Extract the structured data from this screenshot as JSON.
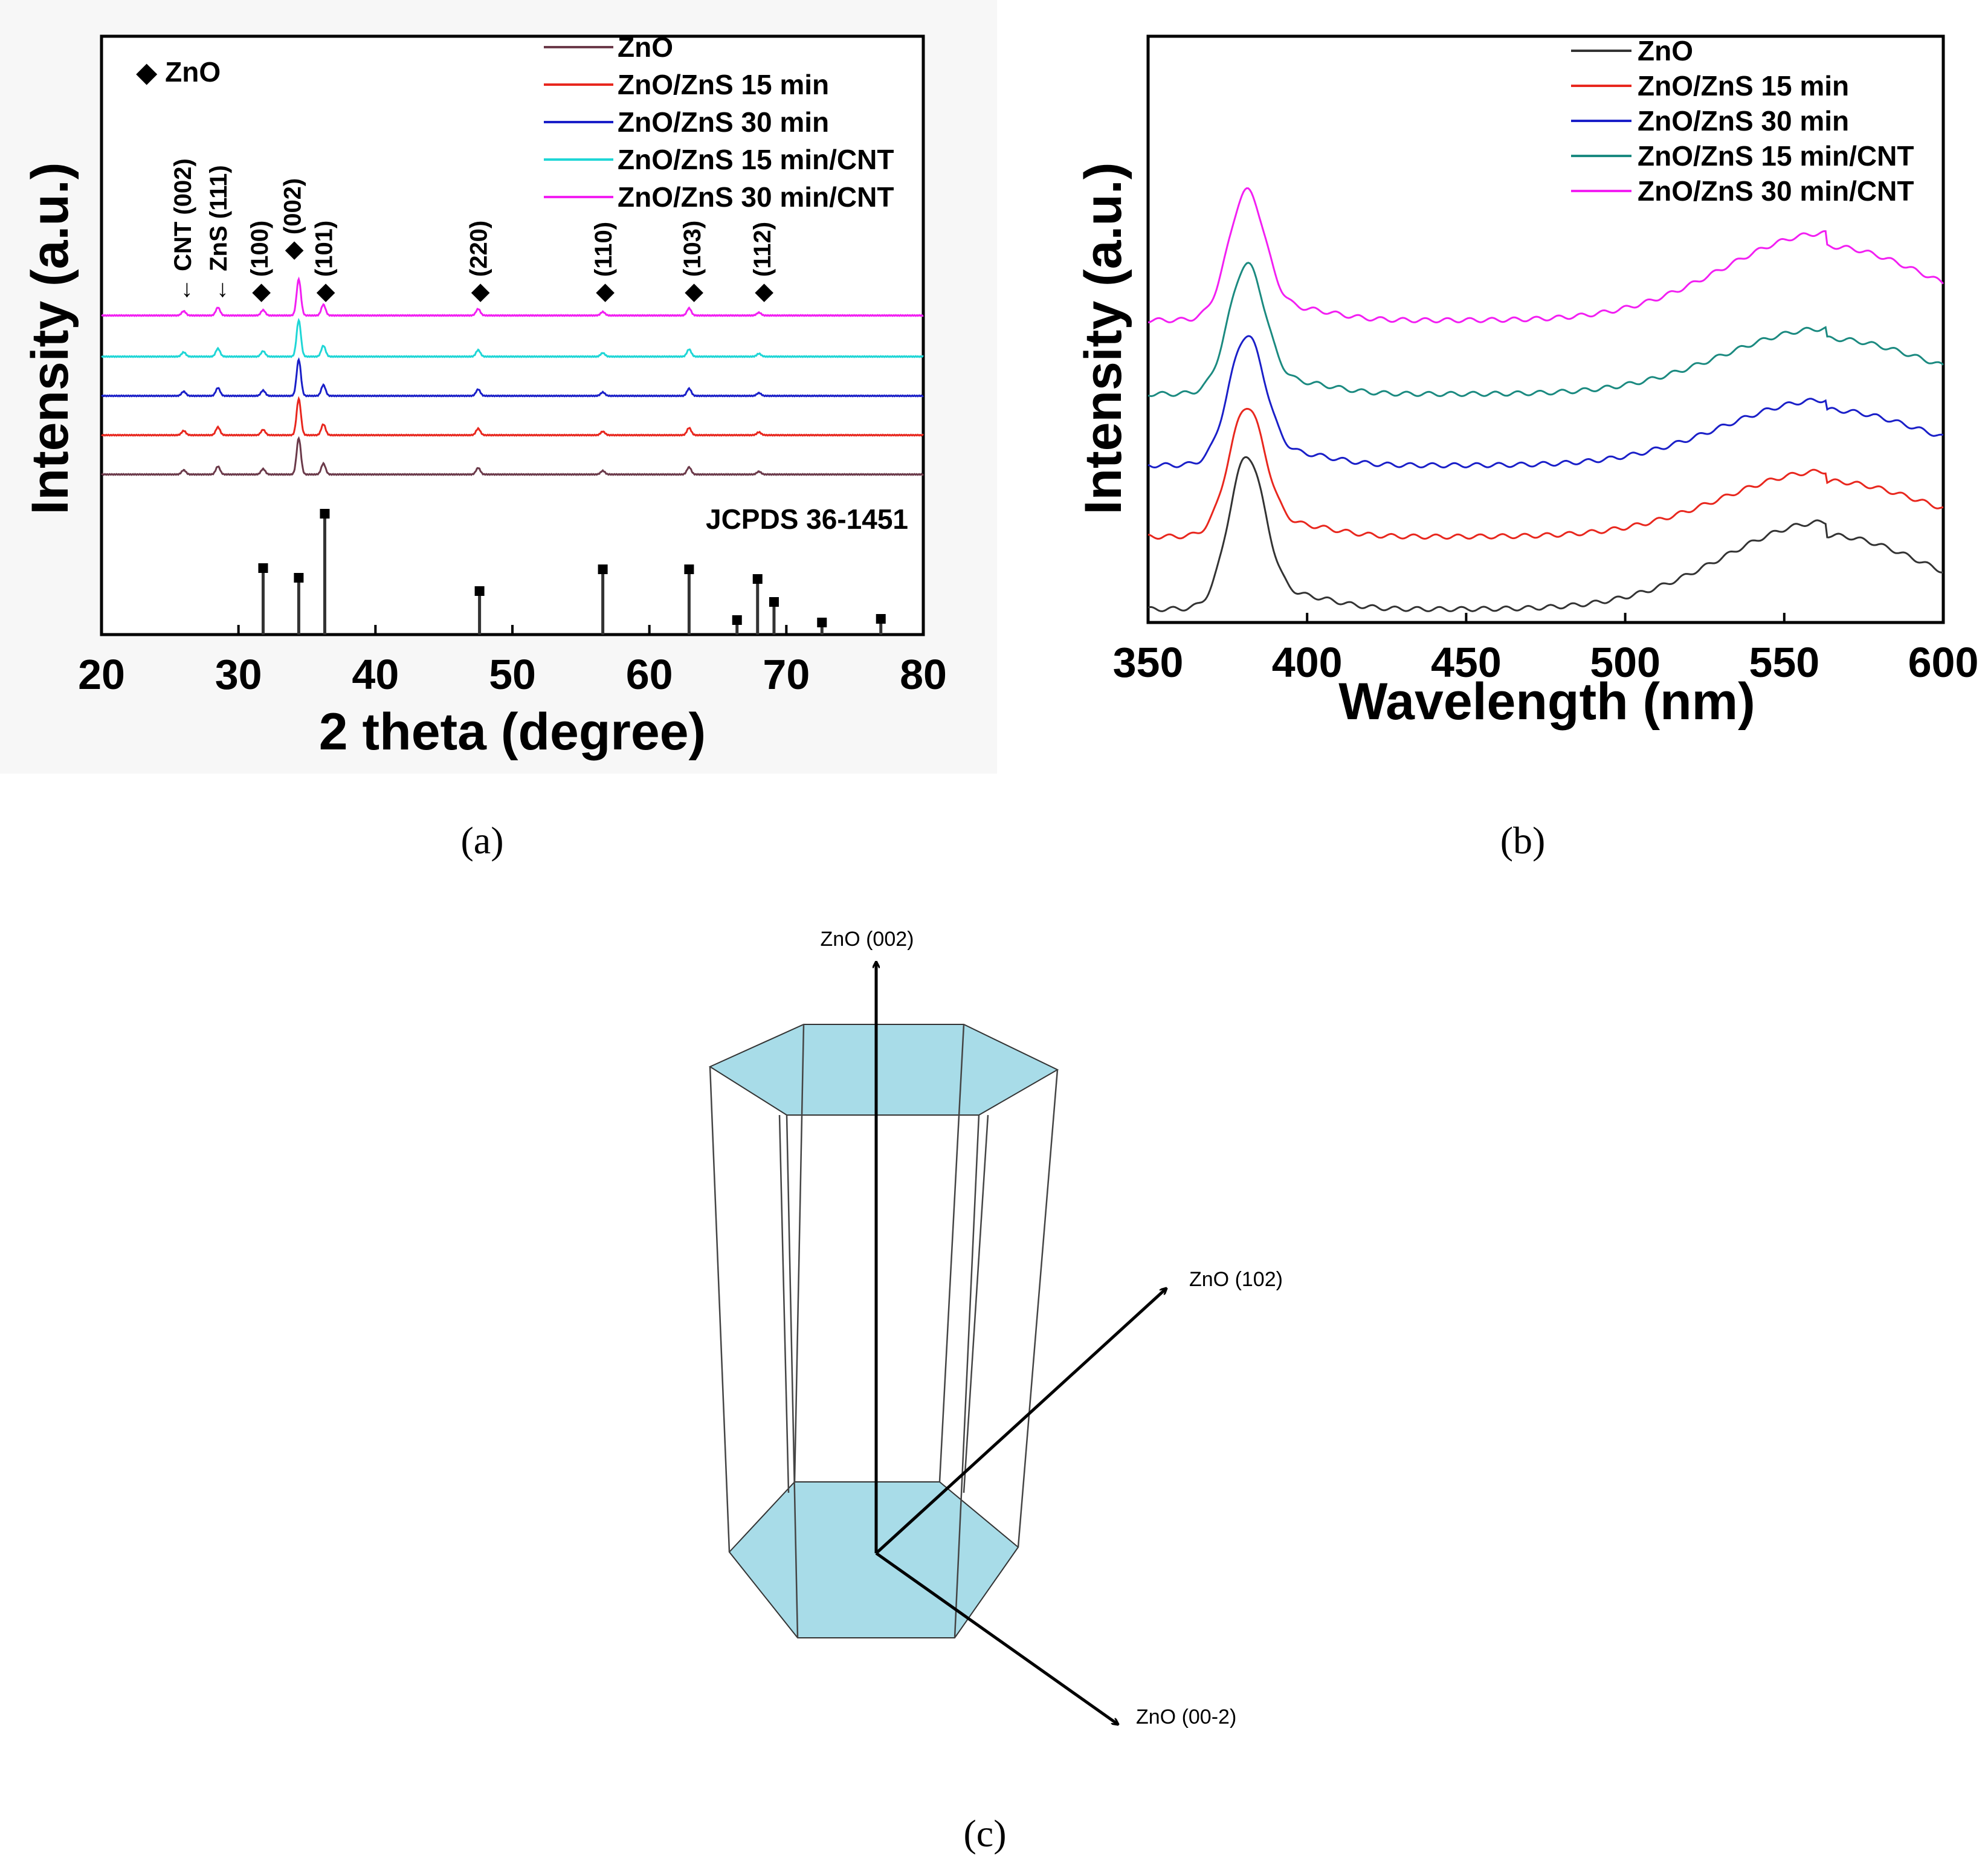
{
  "captions": {
    "a": "(a)",
    "b": "(b)",
    "c": "(c)"
  },
  "chart_data": [
    {
      "type": "line",
      "panel": "a",
      "title": "",
      "xlabel": "2 theta (degree)",
      "ylabel": "Intensity (a.u.)",
      "xlim": [
        20,
        80
      ],
      "xticks": [
        "20",
        "30",
        "40",
        "50",
        "60",
        "70",
        "80"
      ],
      "legend_marker_label": "◆ ZnO",
      "reference_label": "JCPDS 36-1451",
      "series": [
        {
          "name": "ZnO",
          "color": "#6b3a4a",
          "baseline_offset": 0
        },
        {
          "name": "ZnO/ZnS 15  min",
          "color": "#e8271e",
          "baseline_offset": 1
        },
        {
          "name": "ZnO/ZnS 30  min",
          "color": "#1a1fc8",
          "baseline_offset": 2
        },
        {
          "name": "ZnO/ZnS 15  min/CNT",
          "color": "#1fd6d6",
          "baseline_offset": 3
        },
        {
          "name": "ZnO/ZnS 30  min/CNT",
          "color": "#f21ff2",
          "baseline_offset": 4
        }
      ],
      "peaks": [
        {
          "x": 26.0,
          "h": 0.12
        },
        {
          "x": 28.5,
          "h": 0.22
        },
        {
          "x": 31.8,
          "h": 0.15
        },
        {
          "x": 34.4,
          "h": 1.0
        },
        {
          "x": 36.2,
          "h": 0.3
        },
        {
          "x": 47.5,
          "h": 0.18
        },
        {
          "x": 56.6,
          "h": 0.1
        },
        {
          "x": 62.9,
          "h": 0.2
        },
        {
          "x": 68.0,
          "h": 0.08
        }
      ],
      "annotations": [
        {
          "text": "← CNT (002)",
          "x": 26.0,
          "color": "#000000"
        },
        {
          "text": "← ZnS (111)",
          "x": 28.6,
          "color": "#c00000"
        },
        {
          "text": "◆ (100)",
          "x": 31.6,
          "color": "#000000"
        },
        {
          "text": "◆ (002)",
          "x": 34.0,
          "color": "#000000"
        },
        {
          "text": "◆ (101)",
          "x": 36.3,
          "color": "#000000"
        },
        {
          "text": "◆ (220)",
          "x": 47.6,
          "color": "#000000"
        },
        {
          "text": "◆ (110)",
          "x": 56.7,
          "color": "#000000"
        },
        {
          "text": "◆ (103)",
          "x": 63.2,
          "color": "#000000"
        },
        {
          "text": "◆ (112)",
          "x": 68.3,
          "color": "#000000"
        }
      ],
      "reference_lines": [
        {
          "x": 31.8,
          "h": 0.55
        },
        {
          "x": 34.4,
          "h": 0.47
        },
        {
          "x": 36.3,
          "h": 1.0
        },
        {
          "x": 47.6,
          "h": 0.36
        },
        {
          "x": 56.6,
          "h": 0.54
        },
        {
          "x": 62.9,
          "h": 0.54
        },
        {
          "x": 66.4,
          "h": 0.12
        },
        {
          "x": 67.9,
          "h": 0.46
        },
        {
          "x": 69.1,
          "h": 0.27
        },
        {
          "x": 72.6,
          "h": 0.1
        },
        {
          "x": 76.9,
          "h": 0.13
        }
      ]
    },
    {
      "type": "line",
      "panel": "b",
      "title": "",
      "xlabel": "Wavelength (nm)",
      "ylabel": "Intensity (a.u.)",
      "xlim": [
        350,
        600
      ],
      "xticks": [
        "350",
        "400",
        "450",
        "500",
        "550",
        "600"
      ],
      "series": [
        {
          "name": "ZnO",
          "color": "#333333",
          "baseline_offset": 0,
          "uv_peak": 1.0,
          "vis_peak": 0.6
        },
        {
          "name": "ZnO/ZnS 15 min",
          "color": "#e8271e",
          "baseline_offset": 1,
          "uv_peak": 0.85,
          "vis_peak": 0.45
        },
        {
          "name": "ZnO/ZnS 30 min",
          "color": "#1a1fc8",
          "baseline_offset": 2,
          "uv_peak": 0.85,
          "vis_peak": 0.45
        },
        {
          "name": "ZnO/ZnS 15 min/CNT",
          "color": "#1b8a80",
          "baseline_offset": 3,
          "uv_peak": 0.85,
          "vis_peak": 0.45
        },
        {
          "name": "ZnO/ZnS 30 min/CNT",
          "color": "#f21ff2",
          "baseline_offset": 4,
          "uv_peak": 0.85,
          "vis_peak": 0.6
        }
      ]
    }
  ],
  "diagram_c": {
    "labels": {
      "up": "ZnO (002)",
      "right": "ZnO (102)",
      "down": "ZnO (00-2)"
    },
    "fill_color": "#a8dce8"
  }
}
